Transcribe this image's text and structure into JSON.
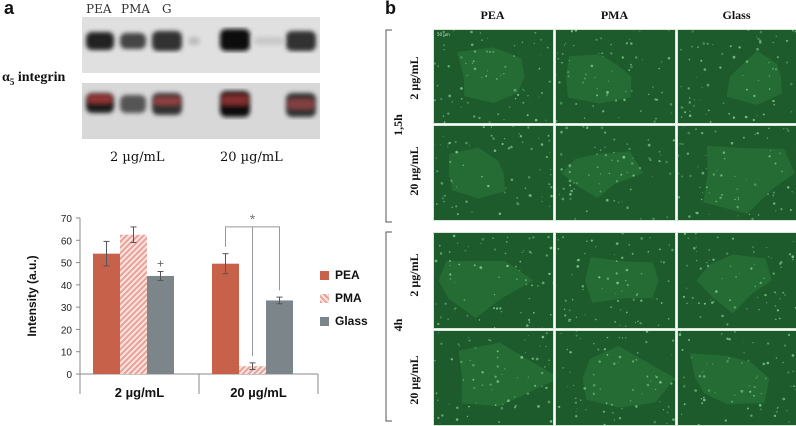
{
  "panel_a": {
    "letter": "a",
    "blot_lanes": [
      "PEA",
      "PMA",
      "G"
    ],
    "protein_label_symbol": "α",
    "protein_label_sub": "5",
    "protein_label_rest": " integrin",
    "concentrations": [
      "2 µg/mL",
      "20 µg/mL"
    ]
  },
  "chart_data": {
    "type": "bar",
    "categories": [
      "2 µg/mL",
      "20 µg/mL"
    ],
    "series": [
      {
        "name": "PEA",
        "values": [
          54,
          49.5
        ],
        "errors": [
          5.5,
          4.5
        ],
        "color": "#c8614a"
      },
      {
        "name": "PMA",
        "values": [
          62.5,
          3.5
        ],
        "errors": [
          3.5,
          1.5
        ],
        "color": "#e8a29a"
      },
      {
        "name": "Glass",
        "values": [
          44,
          33
        ],
        "errors": [
          2,
          1.5
        ],
        "color": "#7c868a"
      }
    ],
    "title": "",
    "xlabel": "",
    "ylabel": "Intensity (a.u.)",
    "ylim": [
      0,
      70
    ],
    "yticks": [
      "0",
      "10",
      "20",
      "30",
      "40",
      "50",
      "60",
      "70"
    ],
    "annotations": [
      "+",
      "*"
    ],
    "legend_position": "right"
  },
  "panel_b": {
    "letter": "b",
    "columns": [
      "PEA",
      "PMA",
      "Glass"
    ],
    "time_groups": [
      {
        "label": "1,5h",
        "rows": [
          "2 µg/mL",
          "20 µg/mL"
        ]
      },
      {
        "label": "4h",
        "rows": [
          "2 µg/mL",
          "20 µg/mL"
        ]
      }
    ],
    "scale_bar_text": "50 µm",
    "image_tint": "#1d5a2c"
  }
}
